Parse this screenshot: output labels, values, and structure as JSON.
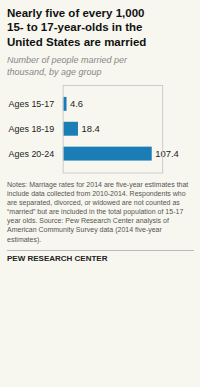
{
  "chart_data": {
    "type": "bar",
    "orientation": "horizontal",
    "title": "Nearly five of every 1,000\n15- to 17-year-olds in the\nUnited States are married",
    "subtitle": "Number of people married per\nthousand, by age group",
    "categories": [
      "Ages 15-17",
      "Ages 18-19",
      "Ages 20-24"
    ],
    "values": [
      4.6,
      18.4,
      107.4
    ],
    "color": "#1a7db5",
    "xlim": [
      0,
      120
    ],
    "data_labels": true,
    "tick_labels": "y",
    "grid": false,
    "notes": "Notes: Marriage rates for 2014 are five-year estimates that include data collected from 2010-2014.  Respondents who are separated, divorced, or widowed are not counted as “married” but are included in the total population of 15-17 year olds. Source: Pew Research Center analysis of American Community Survey data (2014 five-year estimates).",
    "footer": "PEW RESEARCH CENTER"
  }
}
